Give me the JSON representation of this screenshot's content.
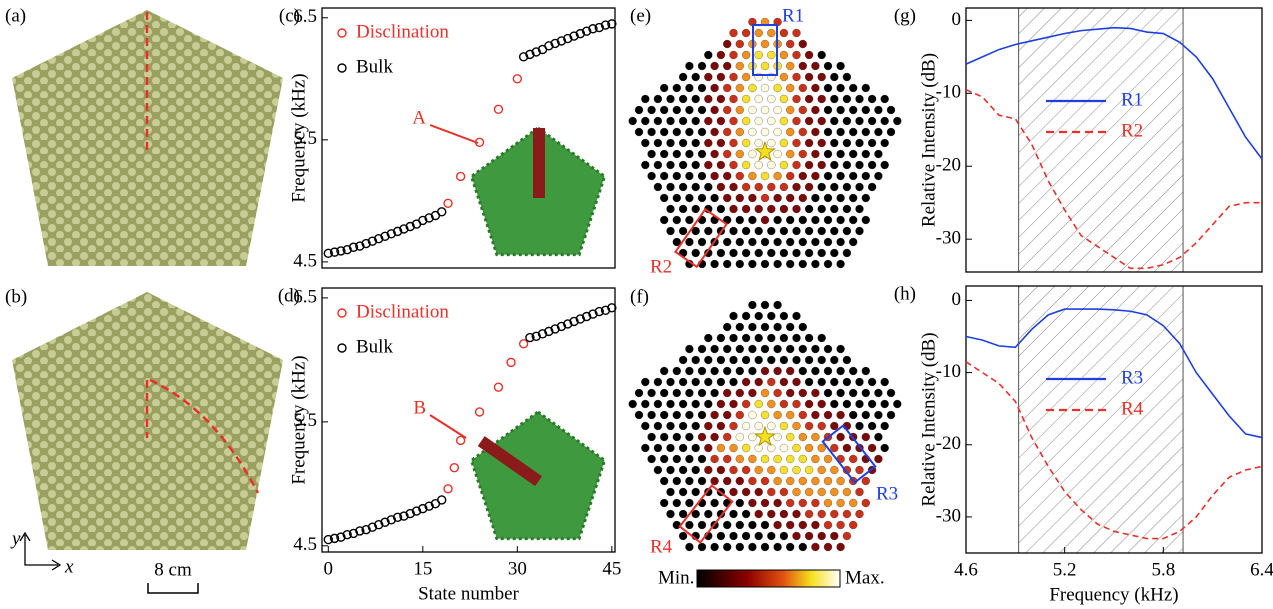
{
  "figure": {
    "panels": [
      "(a)",
      "(b)",
      "(e)",
      "(f)"
    ],
    "scale_bar": "8 cm",
    "axis_x": "x",
    "axis_y": "y",
    "regions": [
      "R1",
      "R2",
      "R3",
      "R4"
    ],
    "colorbar": [
      "Min.",
      "Max."
    ]
  },
  "chart_data": [
    {
      "type": "scatter",
      "label": "(c)",
      "ylabel": "Frequency (kHz)",
      "annotation": "A",
      "legend": "upper left",
      "xlim": [
        -1,
        45.5
      ],
      "ylim": [
        4.45,
        6.58
      ],
      "yticks": [
        4.5,
        5.5,
        6.5
      ],
      "series": [
        {
          "name": "Disclination",
          "color": "#e8312a",
          "x": [
            19,
            21,
            24,
            27,
            30
          ],
          "values": [
            4.98,
            5.2,
            5.48,
            5.75,
            6.0
          ]
        },
        {
          "name": "Bulk",
          "color": "#000000",
          "x": [
            0,
            1,
            2,
            3,
            4,
            5,
            6,
            7,
            8,
            9,
            10,
            11,
            12,
            13,
            14,
            15,
            16,
            17,
            18,
            31,
            32,
            33,
            34,
            35,
            36,
            37,
            38,
            39,
            40,
            41,
            42,
            43,
            44,
            45
          ],
          "values": [
            4.57,
            4.58,
            4.59,
            4.6,
            4.62,
            4.63,
            4.65,
            4.67,
            4.69,
            4.71,
            4.73,
            4.75,
            4.77,
            4.79,
            4.81,
            4.84,
            4.86,
            4.88,
            4.91,
            6.18,
            6.2,
            6.22,
            6.24,
            6.27,
            6.29,
            6.31,
            6.33,
            6.35,
            6.37,
            6.39,
            6.41,
            6.42,
            6.44,
            6.45
          ]
        }
      ]
    },
    {
      "type": "scatter",
      "label": "(d)",
      "ylabel": "Frequency (kHz)",
      "xlabel": "State number",
      "annotation": "B",
      "legend": "upper left",
      "xlim": [
        -1,
        45.5
      ],
      "ylim": [
        4.45,
        6.58
      ],
      "xticks": [
        0,
        15,
        30,
        45
      ],
      "yticks": [
        4.5,
        5.5,
        6.5
      ],
      "series": [
        {
          "name": "Disclination",
          "color": "#e8312a",
          "x": [
            19,
            20,
            21,
            24,
            27,
            29,
            31
          ],
          "values": [
            4.96,
            5.13,
            5.35,
            5.58,
            5.78,
            5.98,
            6.13
          ]
        },
        {
          "name": "Bulk",
          "color": "#000000",
          "x": [
            0,
            1,
            2,
            3,
            4,
            5,
            6,
            7,
            8,
            9,
            10,
            11,
            12,
            13,
            14,
            15,
            16,
            17,
            18,
            32,
            33,
            34,
            35,
            36,
            37,
            38,
            39,
            40,
            41,
            42,
            43,
            44,
            45
          ],
          "values": [
            4.55,
            4.56,
            4.57,
            4.59,
            4.6,
            4.62,
            4.63,
            4.65,
            4.67,
            4.69,
            4.71,
            4.73,
            4.74,
            4.76,
            4.78,
            4.8,
            4.82,
            4.84,
            4.87,
            6.18,
            6.19,
            6.21,
            6.23,
            6.25,
            6.27,
            6.29,
            6.31,
            6.33,
            6.35,
            6.37,
            6.39,
            6.4,
            6.42
          ]
        }
      ]
    },
    {
      "type": "line",
      "label": "(g)",
      "ylabel": "Relative Intensity (dB)",
      "legend": "center",
      "xlim": [
        4.6,
        6.4
      ],
      "ylim": [
        -34.5,
        1.7
      ],
      "yticks": [
        0,
        -10,
        -20,
        -30
      ],
      "shaded_range": [
        4.92,
        5.92
      ],
      "x": [
        4.6,
        4.7,
        4.8,
        4.9,
        5.0,
        5.1,
        5.2,
        5.3,
        5.4,
        5.5,
        5.6,
        5.7,
        5.8,
        5.9,
        6.0,
        6.1,
        6.2,
        6.3,
        6.4
      ],
      "series": [
        {
          "name": "R1",
          "color": "#1f3fe0",
          "dash": false,
          "values": [
            -6,
            -5,
            -4,
            -3.3,
            -2.8,
            -2.3,
            -1.8,
            -1.4,
            -1.2,
            -1,
            -1.1,
            -1.6,
            -1.8,
            -3,
            -5,
            -8,
            -12,
            -16,
            -19
          ]
        },
        {
          "name": "R2",
          "color": "#e8312a",
          "dash": true,
          "values": [
            -9.5,
            -10.5,
            -13,
            -13.5,
            -17,
            -22,
            -26,
            -29.5,
            -31,
            -32.5,
            -34,
            -34,
            -33.5,
            -32.5,
            -30.5,
            -28,
            -25.5,
            -25,
            -25
          ]
        }
      ]
    },
    {
      "type": "line",
      "label": "(h)",
      "ylabel": "Relative Intensity (dB)",
      "xlabel": "Frequency (kHz)",
      "legend": "center",
      "xlim": [
        4.6,
        6.4
      ],
      "ylim": [
        -35,
        2
      ],
      "xticks": [
        4.6,
        5.2,
        5.8,
        6.4
      ],
      "yticks": [
        0,
        -10,
        -20,
        -30
      ],
      "shaded_range": [
        4.92,
        5.92
      ],
      "x": [
        4.6,
        4.7,
        4.8,
        4.9,
        5.0,
        5.1,
        5.2,
        5.3,
        5.4,
        5.5,
        5.6,
        5.7,
        5.8,
        5.9,
        6.0,
        6.1,
        6.2,
        6.3,
        6.4
      ],
      "series": [
        {
          "name": "R3",
          "color": "#1f3fe0",
          "dash": false,
          "values": [
            -5,
            -5.5,
            -6.3,
            -6.5,
            -4,
            -2,
            -1.2,
            -1.2,
            -1.2,
            -1.3,
            -1.5,
            -2,
            -3.5,
            -6,
            -10,
            -13,
            -16,
            -18.5,
            -19
          ]
        },
        {
          "name": "R4",
          "color": "#e8312a",
          "dash": true,
          "values": [
            -8.5,
            -10,
            -11.5,
            -14,
            -19,
            -23,
            -26.5,
            -29,
            -31,
            -32,
            -32.5,
            -33,
            -33,
            -32,
            -30,
            -27,
            -24.5,
            -23.5,
            -23
          ]
        }
      ]
    }
  ]
}
